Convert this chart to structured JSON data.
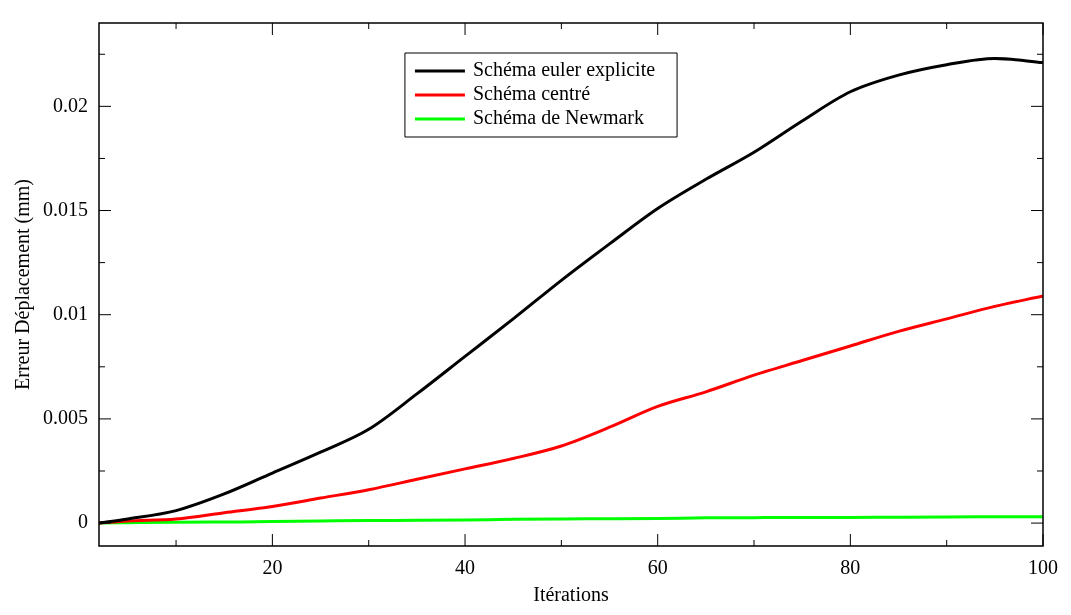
{
  "chart_data": {
    "type": "line",
    "xlabel": "Itérations",
    "ylabel": "Erreur Déplacement (mm)",
    "x": [
      2,
      5,
      10,
      15,
      20,
      25,
      30,
      35,
      40,
      45,
      50,
      55,
      60,
      65,
      70,
      75,
      80,
      85,
      90,
      95,
      100
    ],
    "series": [
      {
        "name": "Schéma euler explicite",
        "color": "#000000",
        "values": [
          0,
          0.0002,
          0.0006,
          0.0014,
          0.0024,
          0.0034,
          0.0045,
          0.0062,
          0.008,
          0.0098,
          0.01165,
          0.0134,
          0.0151,
          0.0165,
          0.0178,
          0.0193,
          0.0207,
          0.0215,
          0.022,
          0.0223,
          0.0221
        ]
      },
      {
        "name": "Schéma centré",
        "color": "#ff0000",
        "values": [
          0,
          0.0001,
          0.0002,
          0.0005,
          0.0008,
          0.0012,
          0.0016,
          0.0021,
          0.0026,
          0.0031,
          0.0037,
          0.0046,
          0.0056,
          0.0063,
          0.0071,
          0.0078,
          0.0085,
          0.0092,
          0.0098,
          0.0104,
          0.0109
        ]
      },
      {
        "name": "Schéma de Newmark",
        "color": "#00ff00",
        "values": [
          0,
          2e-05,
          4e-05,
          5e-05,
          7e-05,
          0.0001,
          0.00012,
          0.00013,
          0.00015,
          0.00018,
          0.0002,
          0.00021,
          0.00022,
          0.00025,
          0.00026,
          0.00027,
          0.00027,
          0.00028,
          0.00029,
          0.0003,
          0.0003
        ]
      }
    ],
    "xlim": [
      2,
      100
    ],
    "ylim": [
      -0.0011,
      0.024
    ],
    "xticks": [
      {
        "value": 10,
        "label": null
      },
      20,
      {
        "value": 30,
        "label": null
      },
      40,
      {
        "value": 50,
        "label": null
      },
      60,
      {
        "value": 70,
        "label": null
      },
      80,
      {
        "value": 90,
        "label": null
      },
      100
    ],
    "yticks": [
      0,
      {
        "value": 0.0025,
        "label": null
      },
      0.005,
      {
        "value": 0.0075,
        "label": null
      },
      0.01,
      {
        "value": 0.0125,
        "label": null
      },
      0.015,
      {
        "value": 0.0175,
        "label": null
      },
      0.02,
      {
        "value": 0.0225,
        "label": null
      }
    ],
    "legend": "top",
    "grid": false,
    "marker": "none",
    "line_style": "solid"
  }
}
